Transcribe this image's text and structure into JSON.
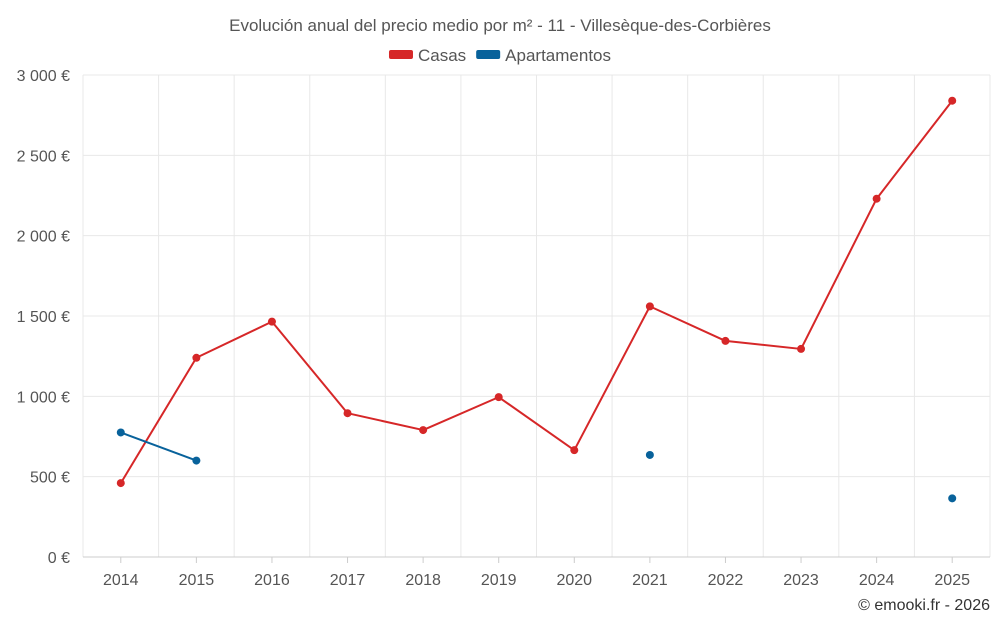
{
  "chart_data": {
    "type": "line",
    "title": "Evolución anual del precio medio por m² - 11 - Villesèque-des-Corbières",
    "categories": [
      "2014",
      "2015",
      "2016",
      "2017",
      "2018",
      "2019",
      "2020",
      "2021",
      "2022",
      "2023",
      "2024",
      "2025"
    ],
    "series": [
      {
        "name": "Casas",
        "color": "#d62728",
        "values": [
          460,
          1240,
          1465,
          895,
          790,
          995,
          665,
          1560,
          1345,
          1295,
          2230,
          2840
        ]
      },
      {
        "name": "Apartamentos",
        "color": "#08629b",
        "values": [
          775,
          600,
          null,
          null,
          null,
          null,
          null,
          635,
          null,
          null,
          null,
          365
        ]
      }
    ],
    "ylim": [
      0,
      3000
    ],
    "yticks": [
      0,
      500,
      1000,
      1500,
      2000,
      2500,
      3000
    ],
    "ytick_labels": [
      "0 €",
      "500 €",
      "1 000 €",
      "1 500 €",
      "2 000 €",
      "2 500 €",
      "3 000 €"
    ],
    "xlabel": "",
    "ylabel": "",
    "grid": true,
    "legend_position": "top-center"
  },
  "footer": {
    "copyright": "© emooki.fr - 2026"
  }
}
